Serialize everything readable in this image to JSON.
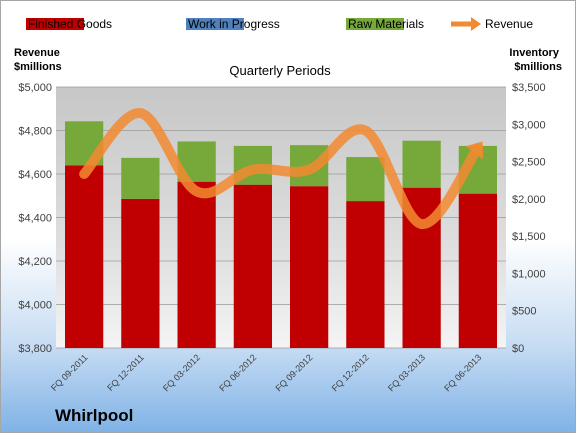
{
  "chart_data": {
    "type": "bar",
    "title": "Quarterly Periods",
    "brand": "Whirlpool",
    "y_left_label": [
      "Revenue",
      "$millions"
    ],
    "y_right_label": [
      "Inventory",
      "$millions"
    ],
    "categories": [
      "FQ 09-2011",
      "FQ 12-2011",
      "FQ 03-2012",
      "FQ 06-2012",
      "FQ 09-2012",
      "FQ 12-2012",
      "FQ 03-2013",
      "FQ 06-2013"
    ],
    "y_left": {
      "min": 3800,
      "max": 5000,
      "step": 200,
      "tick_labels": [
        "$3,800",
        "$4,000",
        "$4,200",
        "$4,400",
        "$4,600",
        "$4,800",
        "$5,000"
      ]
    },
    "y_right": {
      "min": 0,
      "max": 3500,
      "step": 500,
      "tick_labels": [
        "$0",
        "$500",
        "$1,000",
        "$1,500",
        "$2,000",
        "$2,500",
        "$3,000",
        "$3,500"
      ]
    },
    "legend": {
      "placement": "top",
      "items": [
        {
          "name": "Finished Goods",
          "kind": "bar",
          "color": "#c00000"
        },
        {
          "name": "Work in Progress",
          "kind": "bar",
          "color": "#4f81bd"
        },
        {
          "name": "Raw Materials",
          "kind": "bar",
          "color": "#77a83a"
        },
        {
          "name": "Revenue",
          "kind": "line",
          "color": "#f28a30"
        }
      ]
    },
    "series": [
      {
        "name": "Finished Goods",
        "axis": "right",
        "color": "#c00000",
        "values": [
          2450,
          2000,
          2230,
          2190,
          2170,
          1970,
          2150,
          2070
        ]
      },
      {
        "name": "Work in Progress",
        "axis": "right",
        "color": "#4f81bd",
        "values": [
          0,
          0,
          0,
          0,
          0,
          0,
          0,
          0
        ]
      },
      {
        "name": "Raw Materials",
        "axis": "right",
        "color": "#77a83a",
        "values": [
          590,
          550,
          540,
          520,
          550,
          590,
          630,
          640
        ]
      },
      {
        "name": "Revenue",
        "axis": "left",
        "type": "line",
        "color": "#f28a30",
        "values": [
          4600,
          4880,
          4520,
          4620,
          4620,
          4800,
          4370,
          4720
        ]
      }
    ],
    "grid": true
  }
}
